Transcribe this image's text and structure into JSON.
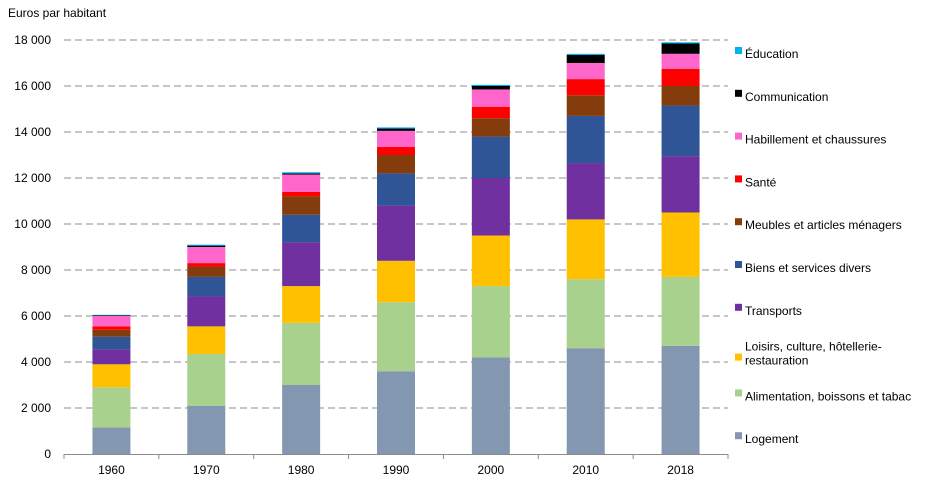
{
  "chart_data": {
    "type": "bar",
    "stacked": true,
    "title": "",
    "ylabel": "Euros par habitant",
    "xlabel": "",
    "ylim": [
      0,
      18000
    ],
    "yticks": [
      0,
      2000,
      4000,
      6000,
      8000,
      10000,
      12000,
      14000,
      16000,
      18000
    ],
    "ytick_labels": [
      "0",
      "2 000",
      "4 000",
      "6 000",
      "8 000",
      "10 000",
      "12 000",
      "14 000",
      "16 000",
      "18 000"
    ],
    "grid": "horizontal-dashed",
    "legend_position": "right",
    "categories": [
      "1960",
      "1970",
      "1980",
      "1990",
      "2000",
      "2010",
      "2018"
    ],
    "series": [
      {
        "name": "Logement",
        "color": "#8497B0",
        "values": [
          1150,
          2100,
          3000,
          3600,
          4200,
          4600,
          4700
        ]
      },
      {
        "name": "Alimentation, boissons et tabac",
        "color": "#A9D18E",
        "values": [
          1750,
          2250,
          2700,
          3000,
          3100,
          3000,
          3000
        ]
      },
      {
        "name": "Loisirs, culture, hôtellerie-restauration",
        "color": "#FFC000",
        "values": [
          1000,
          1200,
          1600,
          1800,
          2200,
          2600,
          2800
        ]
      },
      {
        "name": "Transports",
        "color": "#7030A0",
        "values": [
          650,
          1300,
          1900,
          2400,
          2500,
          2450,
          2450
        ]
      },
      {
        "name": "Biens et services divers",
        "color": "#2F5597",
        "values": [
          550,
          850,
          1200,
          1400,
          1800,
          2050,
          2200
        ]
      },
      {
        "name": "Meubles et articles ménagers",
        "color": "#843C0C",
        "values": [
          300,
          450,
          800,
          800,
          800,
          900,
          850
        ]
      },
      {
        "name": "Santé",
        "color": "#FF0000",
        "values": [
          150,
          150,
          200,
          350,
          500,
          700,
          750
        ]
      },
      {
        "name": "Habillement et chaussures",
        "color": "#FF66CC",
        "values": [
          450,
          700,
          750,
          700,
          750,
          700,
          650
        ]
      },
      {
        "name": "Communication",
        "color": "#000000",
        "values": [
          30,
          60,
          50,
          100,
          150,
          350,
          450
        ]
      },
      {
        "name": "Éducation",
        "color": "#00B0F0",
        "values": [
          20,
          40,
          50,
          50,
          50,
          50,
          50
        ]
      }
    ],
    "legend_labels": [
      [
        "Éducation"
      ],
      [
        "Communication"
      ],
      [
        "Habillement et chaussures"
      ],
      [
        "Santé"
      ],
      [
        "Meubles et articles ménagers"
      ],
      [
        "Biens et services divers"
      ],
      [
        "Transports"
      ],
      [
        "Loisirs, culture, hôtellerie-",
        "restauration"
      ],
      [
        "Alimentation, boissons et tabac"
      ],
      [
        "Logement"
      ]
    ]
  }
}
